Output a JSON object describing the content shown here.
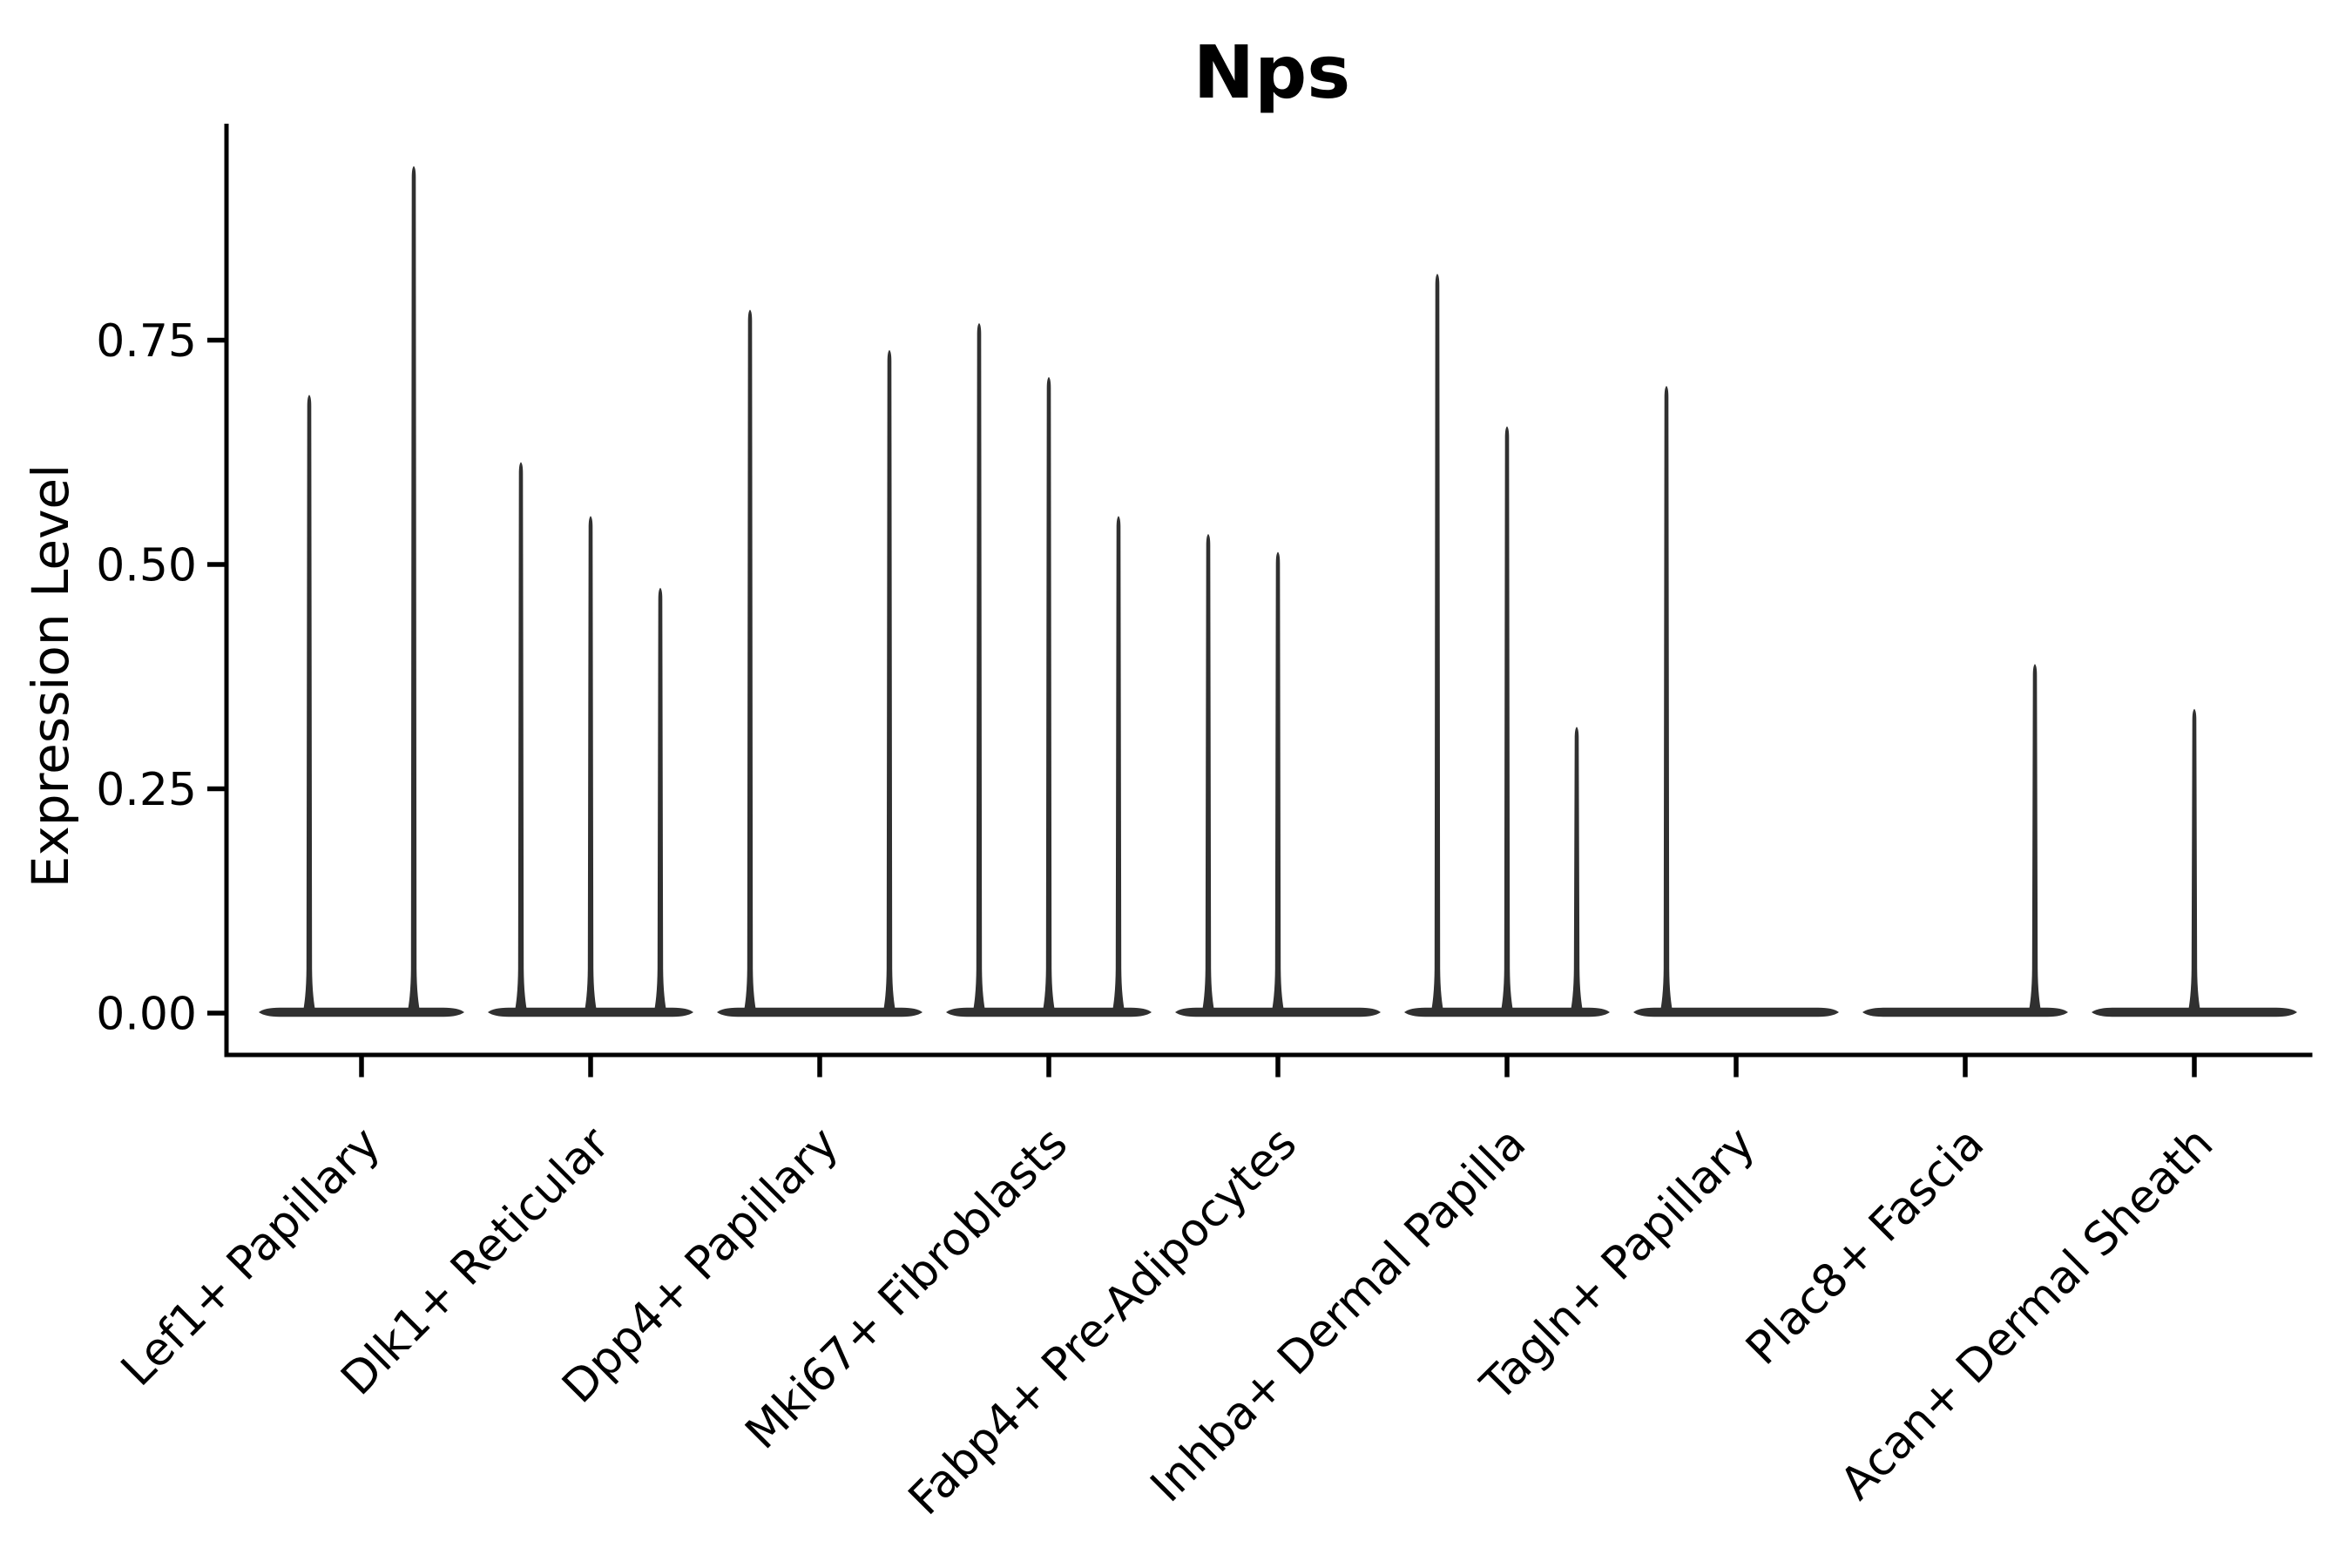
{
  "chart_data": {
    "type": "violin",
    "title": "Nps",
    "ylabel": "Expression Level",
    "xlabel": "",
    "ylim": [
      0,
      0.99
    ],
    "grid": false,
    "legend": "none",
    "ink_color": "#303030",
    "axis_color": "#000000",
    "yticks": [
      {
        "label": "0.00",
        "value": 0.0
      },
      {
        "label": "0.25",
        "value": 0.25
      },
      {
        "label": "0.50",
        "value": 0.5
      },
      {
        "label": "0.75",
        "value": 0.75
      }
    ],
    "categories": [
      {
        "label": "Lef1+ Papillary",
        "violins": [
          {
            "offset": -60,
            "max": 0.69
          },
          {
            "offset": 60,
            "max": 0.945
          }
        ]
      },
      {
        "label": "Dlk1+ Reticular",
        "violins": [
          {
            "offset": -80,
            "max": 0.615
          },
          {
            "offset": 0,
            "max": 0.555
          },
          {
            "offset": 80,
            "max": 0.475
          }
        ]
      },
      {
        "label": "Dpp4+ Papillary",
        "violins": [
          {
            "offset": -80,
            "max": 0.785
          },
          {
            "offset": 0,
            "max": 0
          },
          {
            "offset": 80,
            "max": 0.74
          }
        ]
      },
      {
        "label": "Mki67+ Fibroblasts",
        "violins": [
          {
            "offset": -80,
            "max": 0.77
          },
          {
            "offset": 0,
            "max": 0.71
          },
          {
            "offset": 80,
            "max": 0.555
          }
        ]
      },
      {
        "label": "Fabp4+ Pre-Adipocytes",
        "violins": [
          {
            "offset": -80,
            "max": 0.535
          },
          {
            "offset": 0,
            "max": 0.515
          },
          {
            "offset": 80,
            "max": 0
          }
        ]
      },
      {
        "label": "Inhba+ Dermal Papilla",
        "violins": [
          {
            "offset": -80,
            "max": 0.825
          },
          {
            "offset": 0,
            "max": 0.655
          },
          {
            "offset": 80,
            "max": 0.32
          }
        ]
      },
      {
        "label": "Tagln+ Papillary",
        "violins": [
          {
            "offset": -80,
            "max": 0.7
          },
          {
            "offset": 0,
            "max": 0
          },
          {
            "offset": 80,
            "max": 0
          }
        ]
      },
      {
        "label": "Plac8+ Fascia",
        "violins": [
          {
            "offset": -80,
            "max": 0
          },
          {
            "offset": 0,
            "max": 0
          },
          {
            "offset": 80,
            "max": 0.39
          }
        ]
      },
      {
        "label": "Acan+ Dermal Sheath",
        "violins": [
          {
            "offset": -80,
            "max": 0
          },
          {
            "offset": 0,
            "max": 0.34
          },
          {
            "offset": 80,
            "max": 0
          }
        ]
      }
    ]
  }
}
